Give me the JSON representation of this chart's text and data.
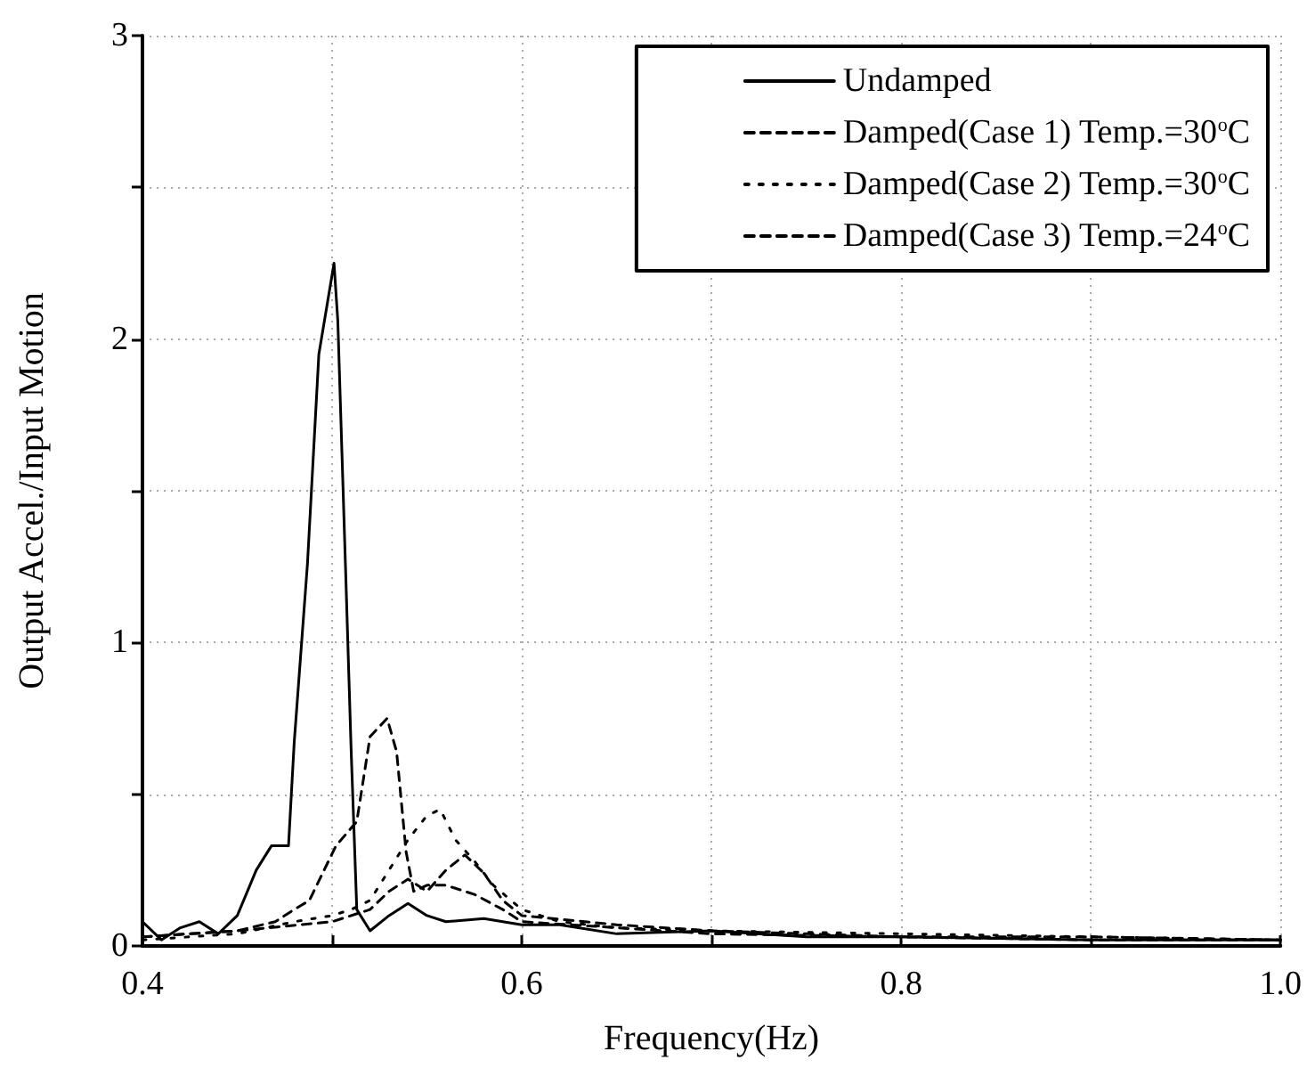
{
  "chart_data": {
    "type": "line",
    "xlabel": "Frequency(Hz)",
    "ylabel": "Output Accel./Input Motion",
    "xlim": [
      0.4,
      1.0
    ],
    "xticks": [
      0.4,
      {
        "value": 0.5,
        "label": null
      },
      0.6,
      {
        "value": 0.7,
        "label": null
      },
      0.8,
      {
        "value": 0.9,
        "label": null
      },
      {
        "value": 1.0,
        "label": "1.0"
      }
    ],
    "ylim": [
      0,
      3
    ],
    "yticks": [
      0,
      {
        "value": 0.5,
        "label": null
      },
      1,
      {
        "value": 1.5,
        "label": null
      },
      2,
      {
        "value": 2.5,
        "label": null
      },
      3
    ],
    "grid": true,
    "legend": "top right",
    "marker": "none",
    "series": [
      {
        "name": "Undamped",
        "color": "#000000",
        "line_style": "solid",
        "x": [
          0.4,
          0.41,
          0.42,
          0.43,
          0.44,
          0.45,
          0.46,
          0.468,
          0.477,
          0.48,
          0.487,
          0.493,
          0.501,
          0.503,
          0.507,
          0.51,
          0.513,
          0.52,
          0.53,
          0.54,
          0.55,
          0.56,
          0.58,
          0.6,
          0.62,
          0.65,
          0.7,
          0.75,
          0.8,
          0.9,
          1.0
        ],
        "values": [
          0.08,
          0.02,
          0.06,
          0.08,
          0.04,
          0.1,
          0.25,
          0.33,
          0.33,
          0.67,
          1.26,
          1.95,
          2.25,
          2.06,
          1.26,
          0.65,
          0.12,
          0.05,
          0.1,
          0.14,
          0.1,
          0.08,
          0.09,
          0.07,
          0.07,
          0.04,
          0.05,
          0.03,
          0.03,
          0.02,
          0.02
        ]
      },
      {
        "name": "Damped(Case 1) Temp.=30$^{o}$C",
        "color": "#000000",
        "line_style": "dashed",
        "x": [
          0.4,
          0.45,
          0.47,
          0.48,
          0.488,
          0.502,
          0.513,
          0.52,
          0.529,
          0.534,
          0.539,
          0.543,
          0.55,
          0.56,
          0.575,
          0.59,
          0.6,
          0.65,
          0.7,
          0.8,
          0.9,
          1.0
        ],
        "values": [
          0.03,
          0.05,
          0.08,
          0.12,
          0.15,
          0.33,
          0.41,
          0.69,
          0.75,
          0.64,
          0.31,
          0.18,
          0.2,
          0.2,
          0.17,
          0.12,
          0.08,
          0.06,
          0.04,
          0.03,
          0.02,
          0.02
        ]
      },
      {
        "name": "Damped(Case 2) Temp.=30$^{o}$C",
        "color": "#000000",
        "line_style": "dotted",
        "x": [
          0.4,
          0.45,
          0.48,
          0.5,
          0.51,
          0.52,
          0.53,
          0.54,
          0.55,
          0.557,
          0.565,
          0.575,
          0.585,
          0.6,
          0.62,
          0.65,
          0.7,
          0.8,
          0.9,
          1.0
        ],
        "values": [
          0.02,
          0.04,
          0.08,
          0.1,
          0.12,
          0.15,
          0.25,
          0.35,
          0.43,
          0.45,
          0.35,
          0.28,
          0.2,
          0.12,
          0.08,
          0.06,
          0.05,
          0.04,
          0.03,
          0.02
        ]
      },
      {
        "name": "Damped(Case 3) Temp.=24$^{o}$C",
        "color": "#000000",
        "line_style": "dashed",
        "x": [
          0.4,
          0.45,
          0.5,
          0.52,
          0.53,
          0.54,
          0.55,
          0.56,
          0.57,
          0.58,
          0.59,
          0.6,
          0.65,
          0.7,
          0.8,
          0.9,
          1.0
        ],
        "values": [
          0.03,
          0.05,
          0.08,
          0.12,
          0.18,
          0.22,
          0.18,
          0.25,
          0.3,
          0.24,
          0.15,
          0.1,
          0.07,
          0.05,
          0.03,
          0.03,
          0.02
        ]
      }
    ]
  }
}
